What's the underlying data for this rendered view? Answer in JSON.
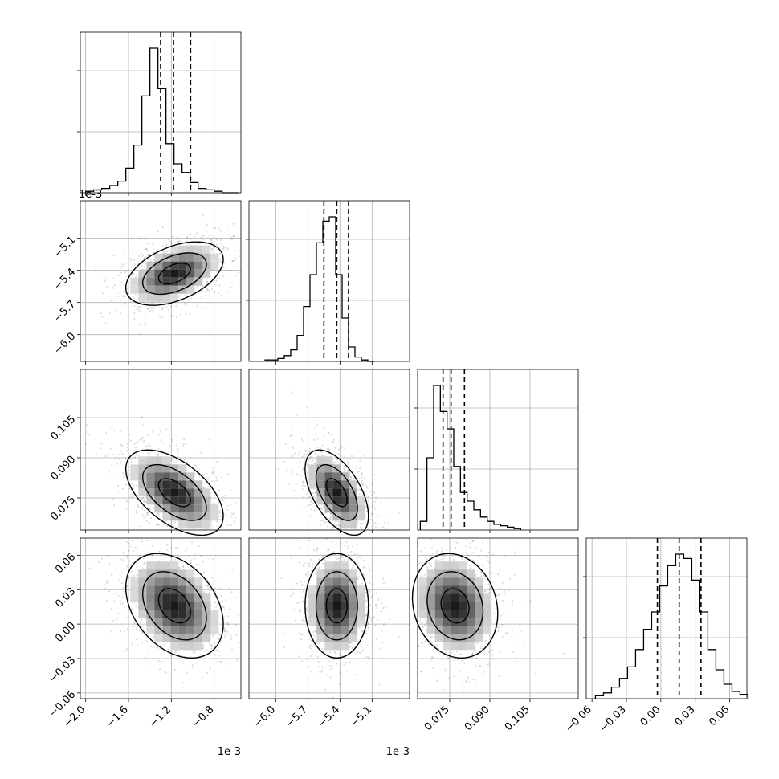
{
  "chart_data": {
    "type": "corner",
    "parameters": [
      {
        "offset_label": "1e-3",
        "range": [
          -2.05,
          -0.55
        ],
        "ticks": [
          -2.0,
          -1.6,
          -1.2,
          -0.8
        ],
        "tick_labels": [
          "−2.0",
          "−1.6",
          "−1.2",
          "−0.8"
        ],
        "quantiles": [
          -1.3,
          -1.18,
          -1.02
        ],
        "hist": {
          "bin_edges": [
            -2.0,
            -1.925,
            -1.85,
            -1.775,
            -1.7,
            -1.625,
            -1.55,
            -1.475,
            -1.4,
            -1.325,
            -1.25,
            -1.175,
            -1.1,
            -1.025,
            -0.95,
            -0.875,
            -0.8,
            -0.725,
            -0.65,
            -0.575
          ],
          "counts": [
            0.01,
            0.02,
            0.03,
            0.05,
            0.08,
            0.17,
            0.33,
            0.67,
            1.0,
            0.72,
            0.34,
            0.2,
            0.14,
            0.07,
            0.03,
            0.02,
            0.01,
            0.0,
            0.0
          ]
        },
        "samples": {
          "mean": -1.17,
          "sd": 0.2
        }
      },
      {
        "offset_label": "1e-3",
        "range": [
          -6.25,
          -4.75
        ],
        "ticks": [
          -6.0,
          -5.7,
          -5.4,
          -5.1
        ],
        "tick_labels": [
          "−6.0",
          "−5.7",
          "−5.4",
          "−5.1"
        ],
        "quantiles": [
          -5.55,
          -5.43,
          -5.32
        ],
        "hist": {
          "bin_edges": [
            -6.1,
            -6.04,
            -5.98,
            -5.92,
            -5.86,
            -5.8,
            -5.74,
            -5.68,
            -5.62,
            -5.56,
            -5.5,
            -5.44,
            -5.38,
            -5.32,
            -5.26,
            -5.2,
            -5.14,
            -5.08
          ],
          "counts": [
            0.01,
            0.01,
            0.02,
            0.04,
            0.08,
            0.18,
            0.38,
            0.6,
            0.82,
            0.97,
            1.0,
            0.6,
            0.3,
            0.1,
            0.03,
            0.01,
            0.0
          ]
        },
        "samples": {
          "mean": -5.43,
          "sd": 0.13
        }
      },
      {
        "offset_label": "",
        "range": [
          0.063,
          0.123
        ],
        "ticks": [
          0.075,
          0.09,
          0.105
        ],
        "tick_labels": [
          "0.075",
          "0.090",
          "0.105"
        ],
        "quantiles": [
          0.0725,
          0.0755,
          0.0805
        ],
        "hist": {
          "bin_edges": [
            0.064,
            0.0665,
            0.069,
            0.0715,
            0.074,
            0.0765,
            0.079,
            0.0815,
            0.084,
            0.0865,
            0.089,
            0.0915,
            0.094,
            0.0965,
            0.099,
            0.1015
          ],
          "counts": [
            0.06,
            0.5,
            1.0,
            0.82,
            0.7,
            0.44,
            0.26,
            0.2,
            0.14,
            0.09,
            0.06,
            0.04,
            0.03,
            0.02,
            0.01
          ]
        },
        "samples": {
          "mean": 0.077,
          "sd": 0.007
        }
      },
      {
        "offset_label": "",
        "range": [
          -0.065,
          0.075
        ],
        "ticks": [
          -0.06,
          -0.03,
          0.0,
          0.03,
          0.06
        ],
        "tick_labels": [
          "−0.06",
          "−0.03",
          "0.00",
          "0.03",
          "0.06"
        ],
        "quantiles": [
          -0.003,
          0.016,
          0.035
        ],
        "hist": {
          "bin_edges": [
            -0.057,
            -0.05,
            -0.043,
            -0.036,
            -0.029,
            -0.022,
            -0.015,
            -0.008,
            -0.001,
            0.006,
            0.013,
            0.02,
            0.027,
            0.034,
            0.041,
            0.048,
            0.055,
            0.062,
            0.069,
            0.076
          ],
          "counts": [
            0.02,
            0.04,
            0.08,
            0.14,
            0.22,
            0.34,
            0.48,
            0.6,
            0.78,
            0.92,
            1.0,
            0.97,
            0.82,
            0.6,
            0.34,
            0.2,
            0.1,
            0.05,
            0.03
          ]
        },
        "samples": {
          "mean": 0.016,
          "sd": 0.02
        }
      }
    ],
    "correlations": {
      "1-0": 0.45,
      "2-0": -0.55,
      "2-1": -0.55,
      "3-0": -0.35,
      "3-1": 0.0,
      "3-2": -0.15
    },
    "grid": true,
    "contour_levels": [
      0.39,
      0.86,
      0.99
    ]
  }
}
